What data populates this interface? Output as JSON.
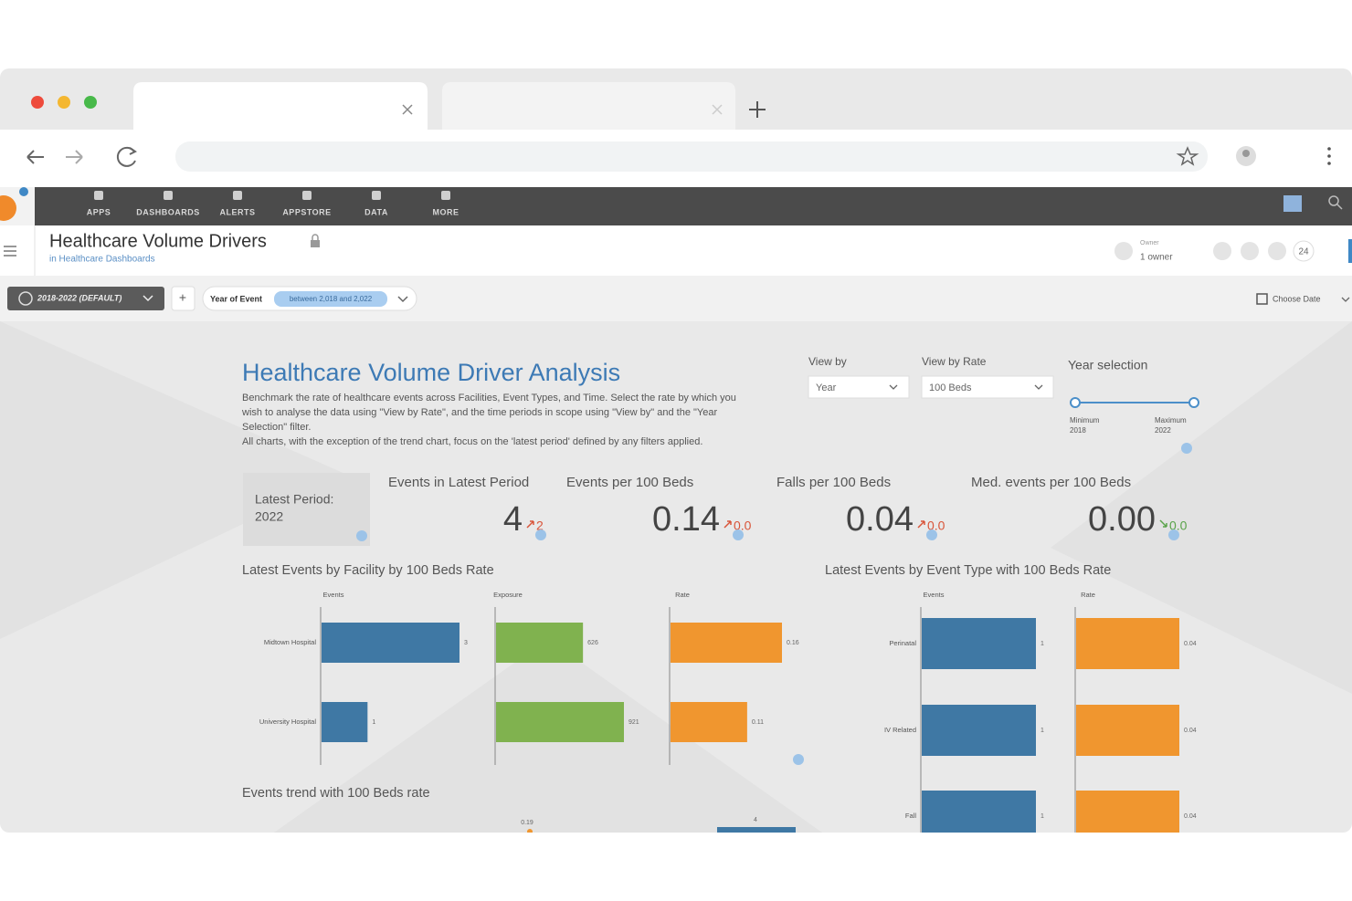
{
  "nav": {
    "items": [
      "APPS",
      "DASHBOARDS",
      "ALERTS",
      "APPSTORE",
      "DATA",
      "MORE"
    ]
  },
  "header": {
    "title": "Healthcare Volume Drivers",
    "subtitle": "in Healthcare Dashboards",
    "owner_label": "Owner",
    "owner_value": "1 owner",
    "viewers": "24"
  },
  "filters": {
    "preset": "2018-2022 (DEFAULT)",
    "add": "+",
    "filter_name": "Year of Event",
    "filter_value": "between 2,018 and 2,022",
    "date": "Choose Date"
  },
  "dashboard": {
    "title": "Healthcare Volume Driver Analysis",
    "description": [
      "Benchmark the rate of healthcare events across Facilities, Event Types, and Time.  Select the rate by which you",
      "wish to analyse the data using \"View by Rate\", and the time periods in scope using \"View by\" and the \"Year",
      "Selection\" filter.",
      "All charts, with the exception of the trend chart, focus on the 'latest period' defined by any filters applied."
    ],
    "controls": {
      "view_by": {
        "label": "View by",
        "value": "Year"
      },
      "view_by_rate": {
        "label": "View by Rate",
        "value": "100 Beds"
      },
      "year_selection": {
        "label": "Year selection",
        "min_label": "Minimum",
        "min_value": "2018",
        "max_label": "Maximum",
        "max_value": "2022"
      }
    },
    "latest_period": [
      "Latest Period:",
      "2022"
    ],
    "kpis": [
      {
        "label": "Events in Latest Period",
        "value": "4",
        "change": "2"
      },
      {
        "label": "Events per 100 Beds",
        "value": "0.14",
        "change": "0.0"
      },
      {
        "label": "Falls per 100 Beds",
        "value": "0.04",
        "change": "0.0"
      },
      {
        "label": "Med. events per 100 Beds",
        "value": "0.00",
        "change": "0.0"
      }
    ],
    "facility_chart": {
      "type": "bar",
      "title": "Latest Events by Facility by 100 Beds Rate",
      "categories": [
        "Midtown Hospital",
        "University Hospital"
      ],
      "series": [
        {
          "name": "Events",
          "color": "#3f78a4",
          "values": [
            3,
            1
          ]
        },
        {
          "name": "Exposure",
          "color": "#80b24f",
          "values": [
            626,
            921
          ]
        },
        {
          "name": "Rate",
          "color": "#f0962f",
          "values": [
            0.16,
            0.11
          ]
        }
      ]
    },
    "event_type_chart": {
      "type": "bar",
      "title": "Latest Events by Event Type with 100 Beds Rate",
      "categories": [
        "Perinatal",
        "IV Related",
        "Fall"
      ],
      "series": [
        {
          "name": "Events",
          "color": "#3f78a4",
          "values": [
            1,
            1,
            1
          ]
        },
        {
          "name": "Rate",
          "color": "#f0962f",
          "values": [
            0.04,
            0.04,
            0.04
          ]
        }
      ]
    },
    "trend_chart": {
      "title": "Events trend with 100 Beds rate",
      "series": [
        {
          "name": "Rate",
          "color": "#f0962f",
          "values": [
            0.19
          ]
        },
        {
          "name": "Events",
          "color": "#3f78a4",
          "values": [
            4
          ]
        }
      ]
    }
  }
}
